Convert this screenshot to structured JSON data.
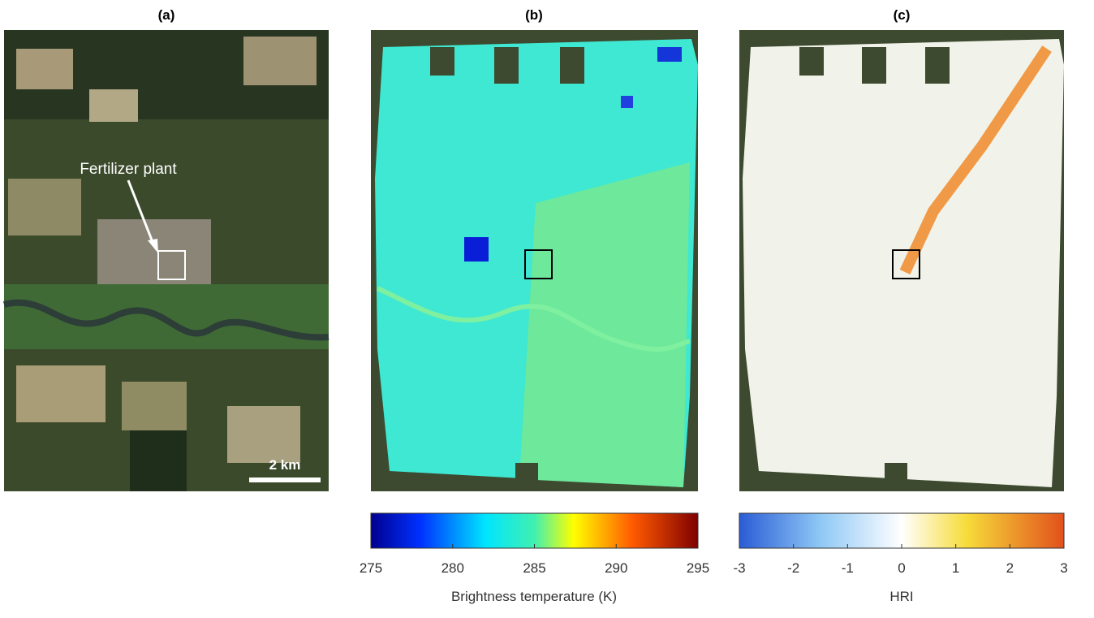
{
  "panels": [
    {
      "label": "(a)",
      "annotation": "Fertilizer plant",
      "scale_bar": "2 km"
    },
    {
      "label": "(b)",
      "colorbar": {
        "title": "Brightness temperature (K)",
        "lim": [
          275,
          295
        ],
        "ticks": [
          275,
          280,
          285,
          290,
          295
        ]
      }
    },
    {
      "label": "(c)",
      "colorbar": {
        "title": "HRI",
        "lim": [
          -3,
          3
        ],
        "ticks": [
          -3,
          -2,
          -1,
          0,
          1,
          2,
          3
        ]
      }
    }
  ]
}
